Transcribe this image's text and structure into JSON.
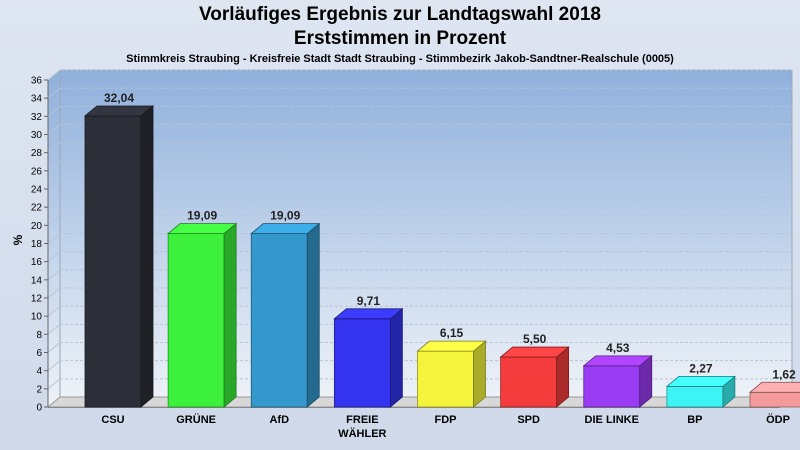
{
  "chart_data": {
    "type": "bar",
    "title": "Vorläufiges Ergebnis zur Landtagswahl 2018",
    "subtitle": "Erststimmen in Prozent",
    "subtitle2": "Stimmkreis Straubing - Kreisfreie Stadt Stadt Straubing - Stimmbezirk Jakob-Sandtner-Realschule (0005)",
    "ylabel": "%",
    "xlabel": "",
    "ylim": [
      0,
      36
    ],
    "yticks": [
      0,
      2,
      4,
      6,
      8,
      10,
      12,
      14,
      16,
      18,
      20,
      22,
      24,
      26,
      28,
      30,
      32,
      34,
      36
    ],
    "grid": true,
    "categories": [
      "CSU",
      "GRÜNE",
      "AfD",
      "FREIE WÄHLER",
      "FDP",
      "SPD",
      "DIE LINKE",
      "BP",
      "ÖDP"
    ],
    "values": [
      32.04,
      19.09,
      19.09,
      9.71,
      6.15,
      5.5,
      4.53,
      2.27,
      1.62
    ],
    "value_labels": [
      "32,04",
      "19,09",
      "19,09",
      "9,71",
      "6,15",
      "5,50",
      "4,53",
      "2,27",
      "1,62"
    ],
    "colors": [
      "#2c2f38",
      "#3cf03c",
      "#3498cc",
      "#3434f0",
      "#f4f43c",
      "#f43c3c",
      "#9a3cf4",
      "#3cf4f4",
      "#f49a9a"
    ]
  }
}
